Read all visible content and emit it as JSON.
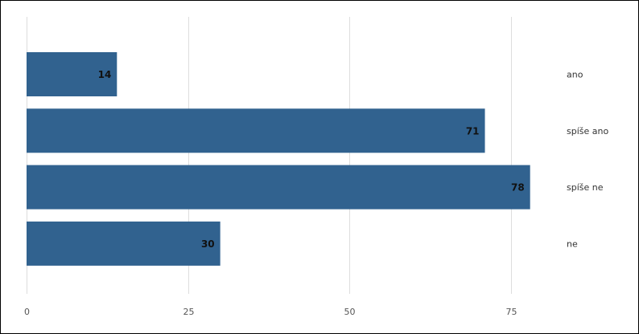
{
  "chart_data": {
    "type": "bar",
    "orientation": "horizontal",
    "categories": [
      "ano",
      "spíše ano",
      "spíše ne",
      "ne"
    ],
    "values": [
      14,
      71,
      78,
      30
    ],
    "xlim": [
      0,
      92
    ],
    "xticks": [
      0,
      25,
      50,
      75
    ],
    "grid": true,
    "bar_color": "#31628f",
    "gridline_color": "#dddddd"
  }
}
